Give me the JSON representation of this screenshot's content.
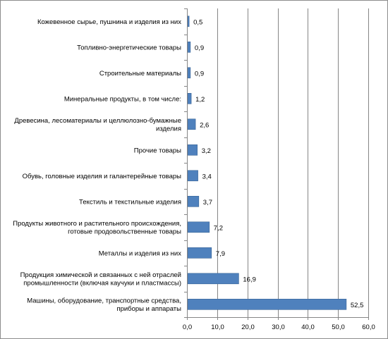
{
  "chart_data": {
    "type": "bar",
    "orientation": "horizontal",
    "categories": [
      [
        "Кожевенное сырье, пушнина и изделия из них"
      ],
      [
        "Топливно-энергетические товары"
      ],
      [
        "Строительные материалы"
      ],
      [
        "Минеральные продукты, в том числе:"
      ],
      [
        "Древесина, лесоматериалы и целлюлозно-бумажные",
        "изделия"
      ],
      [
        "Прочие товары"
      ],
      [
        "Обувь, головные изделия и галантерейные товары"
      ],
      [
        "Текстиль и текстильные изделия"
      ],
      [
        "Продукты животного и растительного происхождения,",
        "готовые продовольственные товары"
      ],
      [
        "Металлы и изделия из них"
      ],
      [
        "Продукция химической и связанных с ней отраслей",
        "промышленности (включая каучуки и пластмассы)"
      ],
      [
        "Машины, оборудование, транспортные средства,",
        "приборы и аппараты"
      ]
    ],
    "values": [
      0.5,
      0.9,
      0.9,
      1.2,
      2.6,
      3.2,
      3.4,
      3.7,
      7.2,
      7.9,
      16.9,
      52.5
    ],
    "value_labels": [
      "0,5",
      "0,9",
      "0,9",
      "1,2",
      "2,6",
      "3,2",
      "3,4",
      "3,7",
      "7,2",
      "7,9",
      "16,9",
      "52,5"
    ],
    "xlim": [
      0,
      60
    ],
    "x_ticks": [
      "0,0",
      "10,0",
      "20,0",
      "30,0",
      "40,0",
      "50,0",
      "60,0"
    ],
    "grid": "vertical",
    "bar_color": "#4f81bd",
    "bar_border_color": "#3a6596",
    "grid_color": "#868686",
    "title": "",
    "xlabel": "",
    "ylabel": ""
  }
}
